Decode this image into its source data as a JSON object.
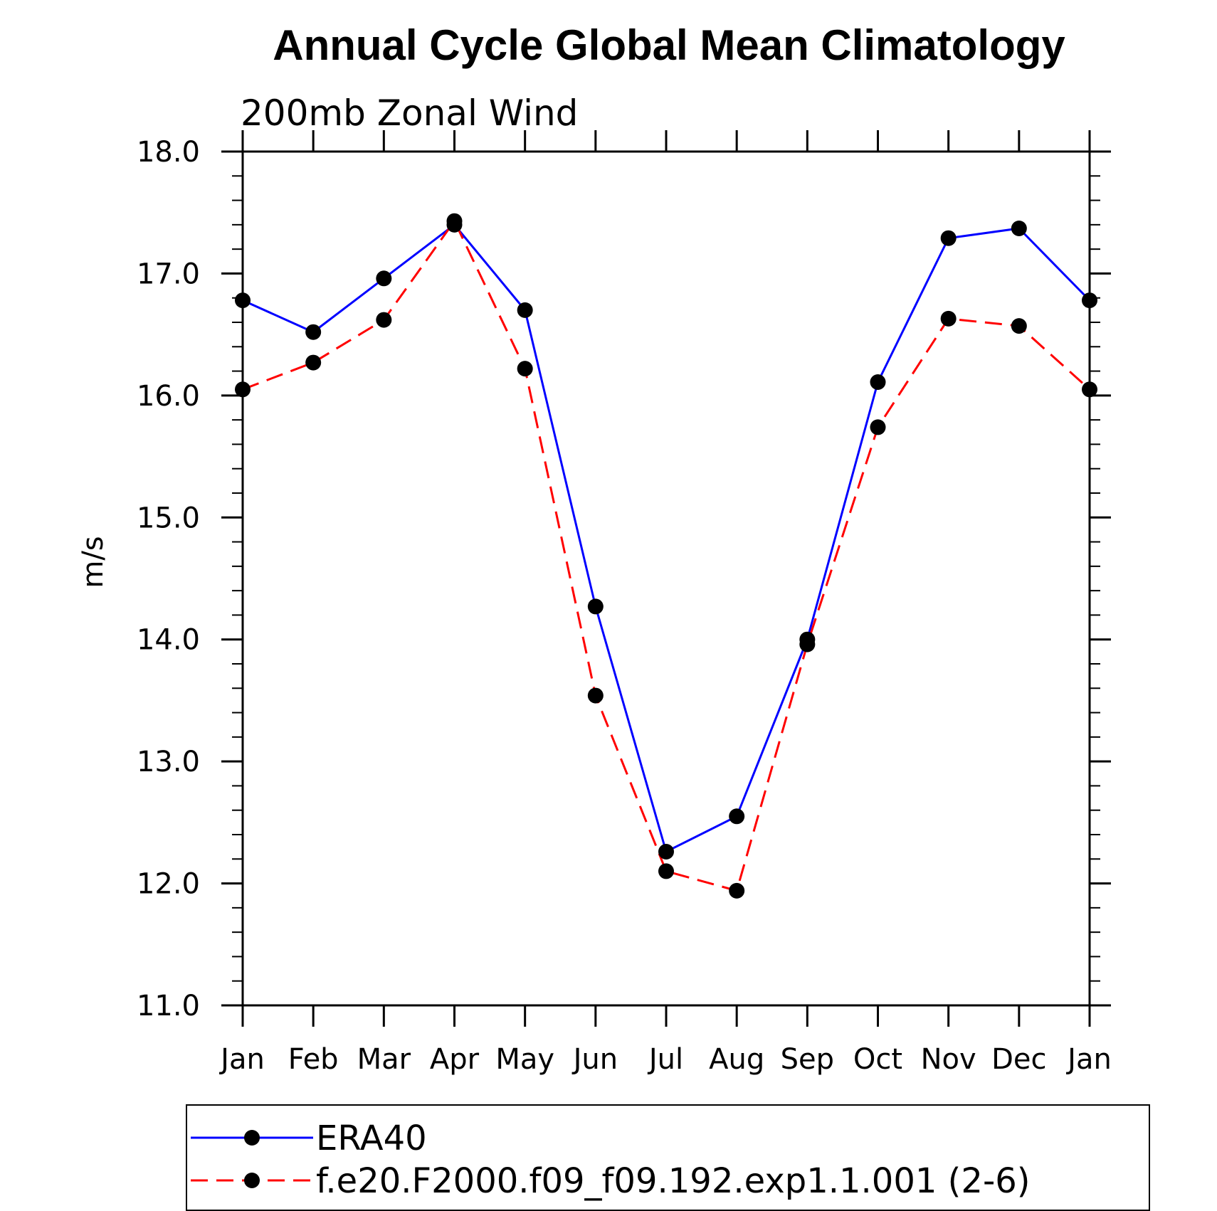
{
  "chart_data": {
    "type": "line",
    "title": "Annual Cycle Global Mean Climatology",
    "subtitle": "200mb Zonal Wind",
    "xlabel": "",
    "ylabel": "m/s",
    "categories": [
      "Jan",
      "Feb",
      "Mar",
      "Apr",
      "May",
      "Jun",
      "Jul",
      "Aug",
      "Sep",
      "Oct",
      "Nov",
      "Dec",
      "Jan"
    ],
    "ylim": [
      11.0,
      18.0
    ],
    "yticks": [
      "11.0",
      "12.0",
      "13.0",
      "14.0",
      "15.0",
      "16.0",
      "17.0",
      "18.0"
    ],
    "series": [
      {
        "name": "ERA40",
        "color": "#0000ff",
        "dash": "solid",
        "values": [
          16.78,
          16.52,
          16.96,
          17.4,
          16.7,
          14.27,
          12.26,
          12.55,
          14.0,
          16.11,
          17.29,
          17.37,
          16.78
        ]
      },
      {
        "name": "f.e20.F2000.f09_f09.192.exp1.1.001 (2-6)",
        "color": "#ff0000",
        "dash": "dashed",
        "values": [
          16.05,
          16.27,
          16.62,
          17.43,
          16.22,
          13.54,
          12.1,
          11.94,
          13.96,
          15.74,
          16.63,
          16.57,
          16.05
        ]
      }
    ],
    "marker": "filled-circle",
    "grid": false,
    "legend_position": "bottom"
  }
}
